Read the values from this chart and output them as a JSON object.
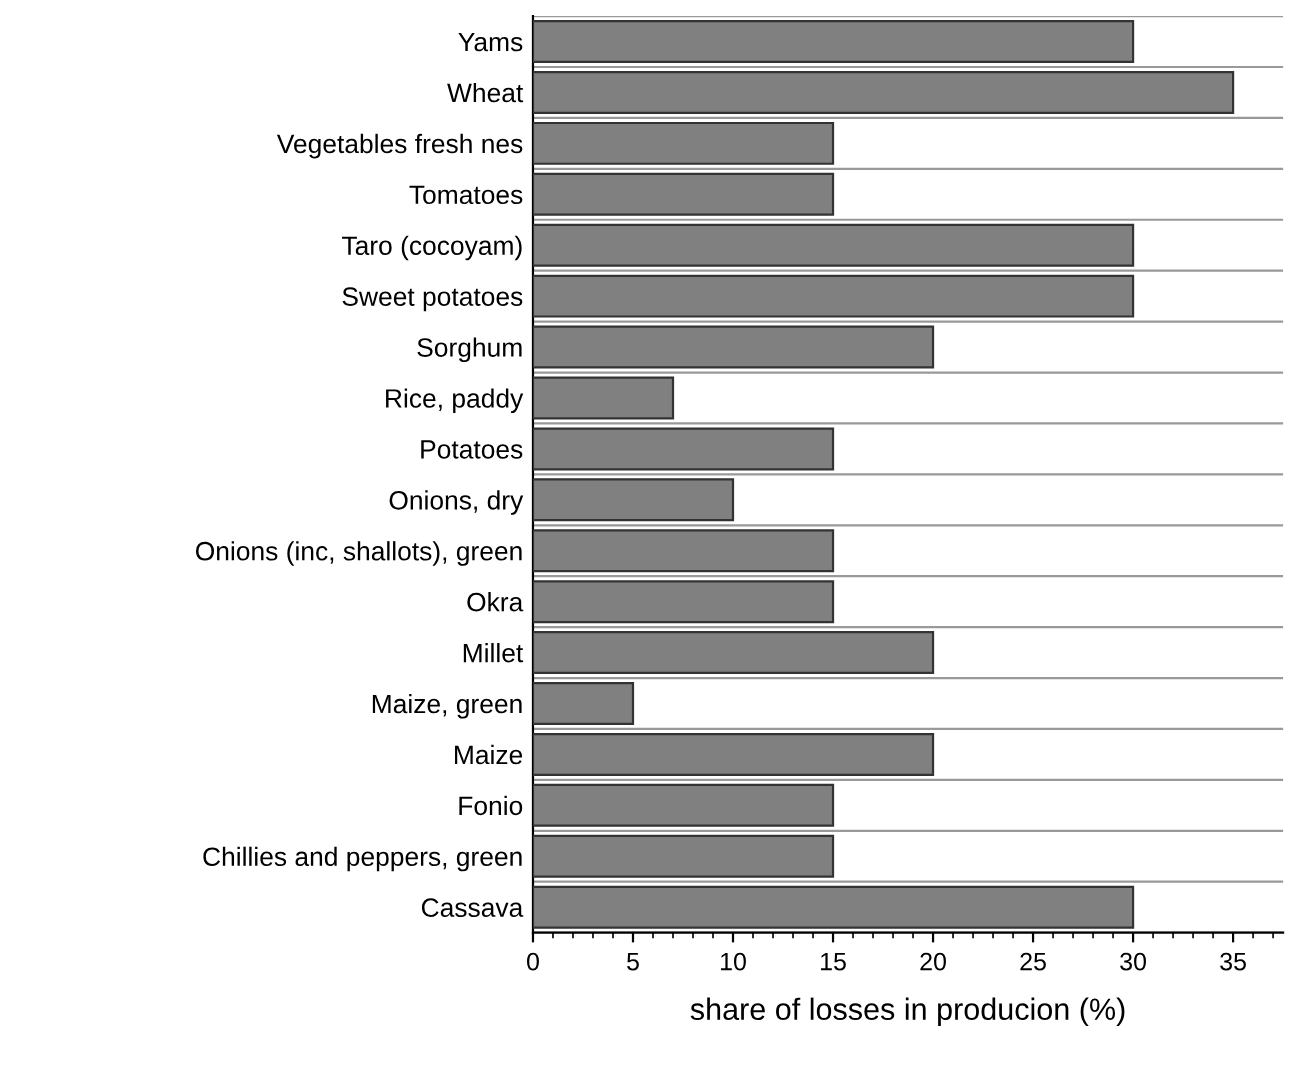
{
  "chart_data": {
    "type": "bar",
    "orientation": "horizontal",
    "xlabel": "share of losses in producion (%)",
    "categories": [
      "Yams",
      "Wheat",
      "Vegetables fresh nes",
      "Tomatoes",
      "Taro (cocoyam)",
      "Sweet potatoes",
      "Sorghum",
      "Rice, paddy",
      "Potatoes",
      "Onions, dry",
      "Onions (inc, shallots), green",
      "Okra",
      "Millet",
      "Maize, green",
      "Maize",
      "Fonio",
      "Chillies and peppers, green",
      "Cassava"
    ],
    "values": [
      30,
      35,
      15,
      15,
      30,
      30,
      20,
      7,
      15,
      10,
      15,
      15,
      20,
      5,
      20,
      15,
      15,
      30
    ],
    "color": "#808080",
    "xlim": [
      0,
      37.5
    ],
    "xticks": [
      0,
      5,
      10,
      15,
      20,
      25,
      30,
      35
    ],
    "grid": "y",
    "legend": false
  }
}
